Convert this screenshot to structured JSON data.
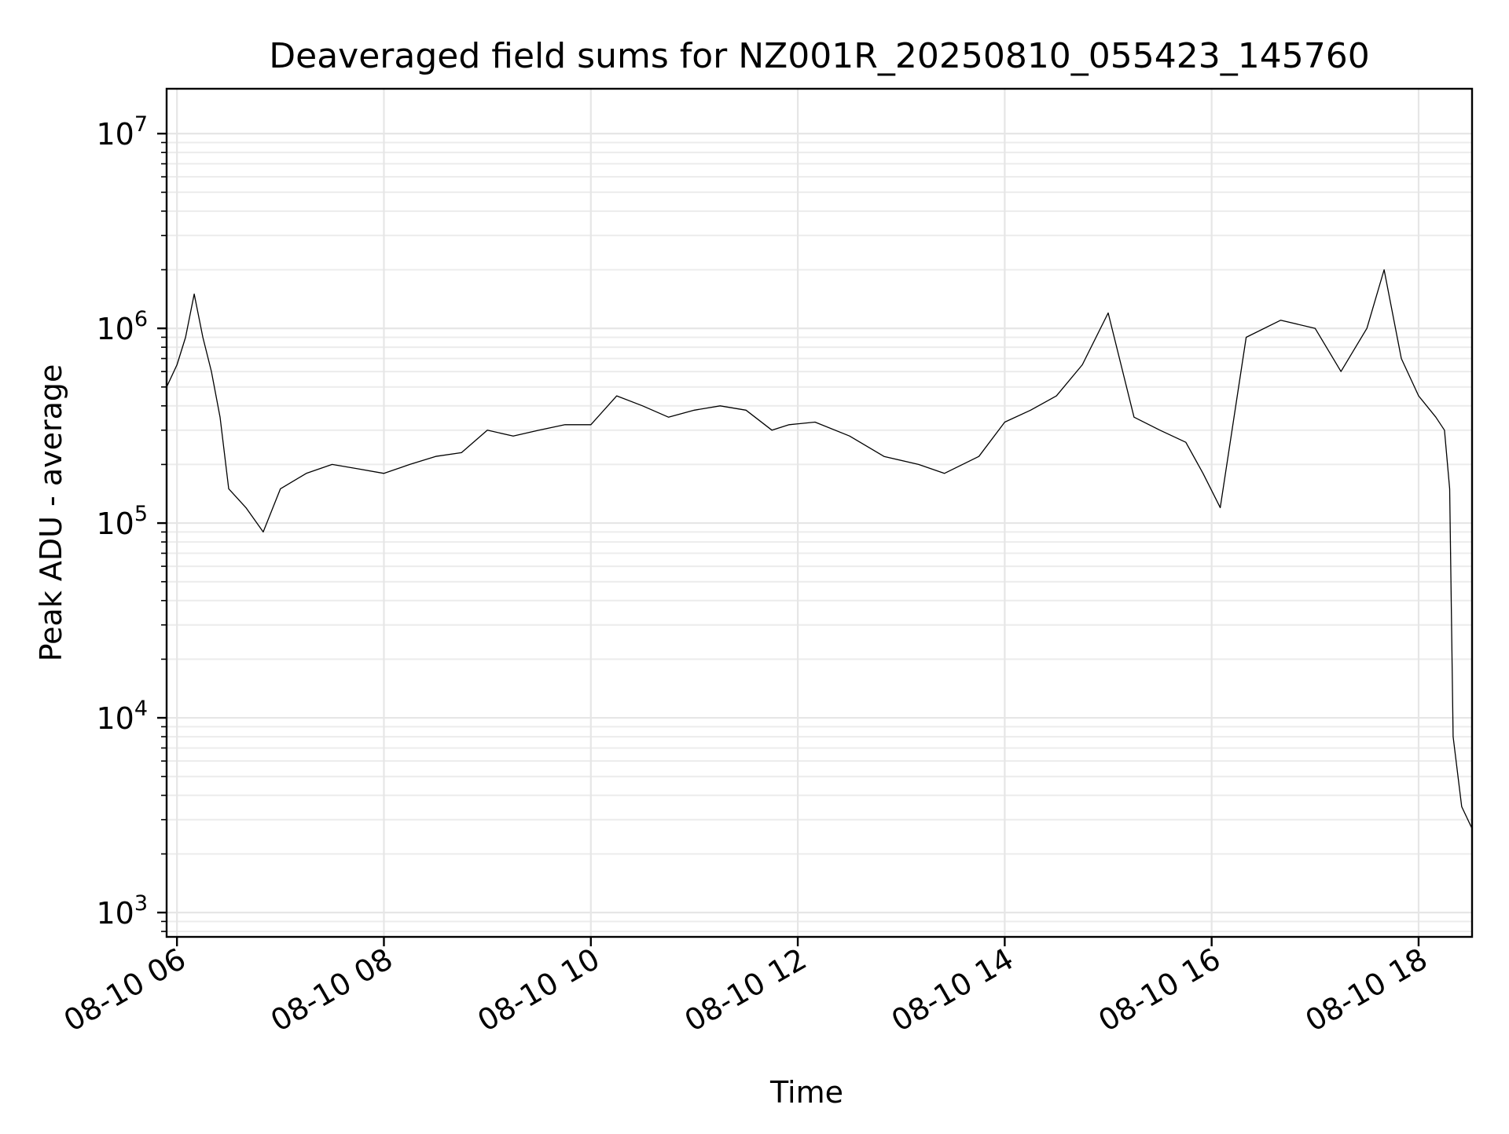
{
  "chart_data": {
    "type": "line",
    "title": "Deaveraged field sums for NZ001R_20250810_055423_145760",
    "xlabel": "Time",
    "ylabel": "Peak ADU - average",
    "yscale": "log",
    "ylim": [
      750,
      17000000
    ],
    "xlim": [
      "2025-08-10 05:54",
      "2025-08-10 18:31"
    ],
    "x_tick_labels": [
      "08-10 06",
      "08-10 08",
      "08-10 10",
      "08-10 12",
      "08-10 14",
      "08-10 16",
      "08-10 18"
    ],
    "x_ticks": [
      "2025-08-10 06:00",
      "2025-08-10 08:00",
      "2025-08-10 10:00",
      "2025-08-10 12:00",
      "2025-08-10 14:00",
      "2025-08-10 16:00",
      "2025-08-10 18:00"
    ],
    "y_tick_labels": [
      {
        "base": "10",
        "exp": "3",
        "value": 1000
      },
      {
        "base": "10",
        "exp": "4",
        "value": 10000
      },
      {
        "base": "10",
        "exp": "5",
        "value": 100000
      },
      {
        "base": "10",
        "exp": "6",
        "value": 1000000
      },
      {
        "base": "10",
        "exp": "7",
        "value": 10000000
      }
    ],
    "grid": "both",
    "legend": "none",
    "series": [
      {
        "color": "#000000",
        "x": [
          "2025-08-10 05:54",
          "2025-08-10 06:00",
          "2025-08-10 06:05",
          "2025-08-10 06:10",
          "2025-08-10 06:15",
          "2025-08-10 06:20",
          "2025-08-10 06:25",
          "2025-08-10 06:30",
          "2025-08-10 06:40",
          "2025-08-10 06:50",
          "2025-08-10 07:00",
          "2025-08-10 07:15",
          "2025-08-10 07:30",
          "2025-08-10 07:45",
          "2025-08-10 08:00",
          "2025-08-10 08:15",
          "2025-08-10 08:30",
          "2025-08-10 08:45",
          "2025-08-10 09:00",
          "2025-08-10 09:15",
          "2025-08-10 09:30",
          "2025-08-10 09:45",
          "2025-08-10 10:00",
          "2025-08-10 10:15",
          "2025-08-10 10:30",
          "2025-08-10 10:45",
          "2025-08-10 11:00",
          "2025-08-10 11:15",
          "2025-08-10 11:30",
          "2025-08-10 11:45",
          "2025-08-10 11:55",
          "2025-08-10 12:10",
          "2025-08-10 12:30",
          "2025-08-10 12:50",
          "2025-08-10 13:10",
          "2025-08-10 13:25",
          "2025-08-10 13:45",
          "2025-08-10 14:00",
          "2025-08-10 14:15",
          "2025-08-10 14:30",
          "2025-08-10 14:45",
          "2025-08-10 15:00",
          "2025-08-10 15:15",
          "2025-08-10 15:30",
          "2025-08-10 15:45",
          "2025-08-10 15:55",
          "2025-08-10 16:05",
          "2025-08-10 16:20",
          "2025-08-10 16:40",
          "2025-08-10 17:00",
          "2025-08-10 17:15",
          "2025-08-10 17:30",
          "2025-08-10 17:40",
          "2025-08-10 17:50",
          "2025-08-10 18:00",
          "2025-08-10 18:10",
          "2025-08-10 18:15",
          "2025-08-10 18:18",
          "2025-08-10 18:20",
          "2025-08-10 18:25",
          "2025-08-10 18:31"
        ],
        "values": [
          500000,
          650000,
          900000,
          1500000,
          900000,
          600000,
          350000,
          150000,
          120000,
          90000,
          150000,
          180000,
          200000,
          190000,
          180000,
          200000,
          220000,
          230000,
          300000,
          280000,
          300000,
          320000,
          320000,
          450000,
          400000,
          350000,
          380000,
          400000,
          380000,
          300000,
          320000,
          330000,
          280000,
          220000,
          200000,
          180000,
          220000,
          330000,
          380000,
          450000,
          650000,
          1200000,
          350000,
          300000,
          260000,
          180000,
          120000,
          900000,
          1100000,
          1000000,
          600000,
          1000000,
          2000000,
          700000,
          450000,
          350000,
          300000,
          150000,
          8000,
          3500,
          2700
        ]
      }
    ]
  }
}
